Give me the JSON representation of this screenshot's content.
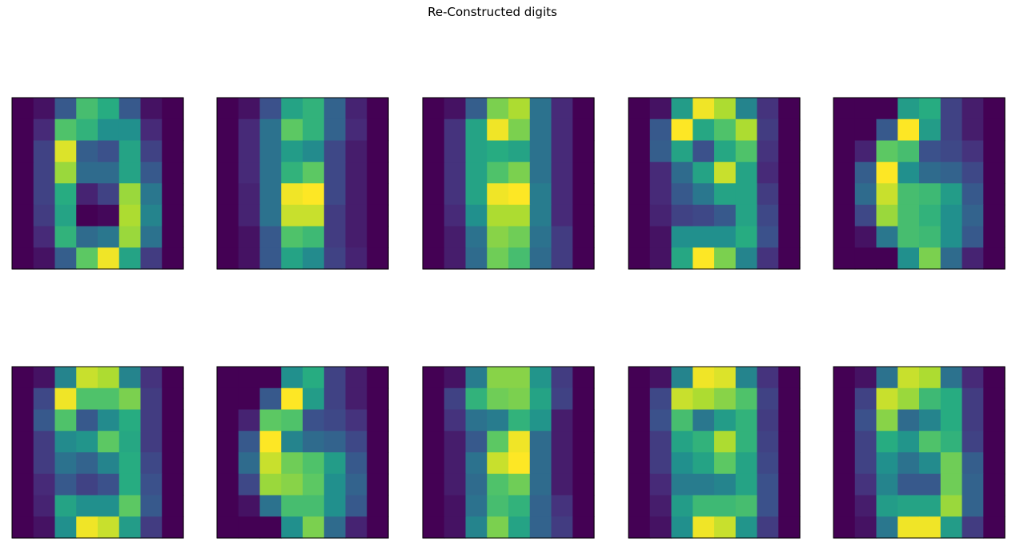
{
  "figure": {
    "title": "Re-Constructed digits"
  },
  "colormap": "viridis",
  "chart_data": [
    {
      "type": "heatmap",
      "title": "",
      "xticks": [],
      "yticks": [],
      "values": [
        [
          0.0,
          0.05,
          0.28,
          0.7,
          0.62,
          0.28,
          0.05,
          0.0
        ],
        [
          0.0,
          0.12,
          0.72,
          0.65,
          0.5,
          0.5,
          0.12,
          0.0
        ],
        [
          0.0,
          0.2,
          0.95,
          0.3,
          0.25,
          0.58,
          0.2,
          0.0
        ],
        [
          0.0,
          0.2,
          0.85,
          0.35,
          0.35,
          0.58,
          0.28,
          0.0
        ],
        [
          0.0,
          0.2,
          0.62,
          0.1,
          0.2,
          0.85,
          0.4,
          0.0
        ],
        [
          0.0,
          0.18,
          0.58,
          0.0,
          0.02,
          0.88,
          0.45,
          0.0
        ],
        [
          0.0,
          0.12,
          0.65,
          0.35,
          0.4,
          0.85,
          0.38,
          0.0
        ],
        [
          0.0,
          0.05,
          0.3,
          0.75,
          0.98,
          0.58,
          0.18,
          0.0
        ]
      ]
    },
    {
      "type": "heatmap",
      "title": "",
      "xticks": [],
      "yticks": [],
      "values": [
        [
          0.0,
          0.05,
          0.25,
          0.58,
          0.65,
          0.32,
          0.1,
          0.0
        ],
        [
          0.0,
          0.12,
          0.38,
          0.75,
          0.65,
          0.32,
          0.12,
          0.0
        ],
        [
          0.0,
          0.12,
          0.38,
          0.55,
          0.48,
          0.22,
          0.08,
          0.0
        ],
        [
          0.0,
          0.12,
          0.38,
          0.65,
          0.75,
          0.22,
          0.08,
          0.0
        ],
        [
          0.0,
          0.1,
          0.38,
          0.98,
          1.0,
          0.22,
          0.08,
          0.0
        ],
        [
          0.0,
          0.1,
          0.38,
          0.92,
          0.92,
          0.18,
          0.08,
          0.0
        ],
        [
          0.0,
          0.05,
          0.28,
          0.72,
          0.68,
          0.18,
          0.08,
          0.0
        ],
        [
          0.0,
          0.05,
          0.28,
          0.58,
          0.48,
          0.2,
          0.1,
          0.0
        ]
      ]
    },
    {
      "type": "heatmap",
      "title": "",
      "xticks": [],
      "yticks": [],
      "values": [
        [
          0.0,
          0.05,
          0.3,
          0.8,
          0.88,
          0.38,
          0.12,
          0.0
        ],
        [
          0.0,
          0.15,
          0.58,
          0.98,
          0.8,
          0.38,
          0.12,
          0.0
        ],
        [
          0.0,
          0.15,
          0.58,
          0.62,
          0.58,
          0.38,
          0.12,
          0.0
        ],
        [
          0.0,
          0.15,
          0.58,
          0.72,
          0.8,
          0.38,
          0.12,
          0.0
        ],
        [
          0.0,
          0.15,
          0.58,
          0.98,
          1.0,
          0.42,
          0.12,
          0.0
        ],
        [
          0.0,
          0.12,
          0.5,
          0.88,
          0.88,
          0.42,
          0.12,
          0.0
        ],
        [
          0.0,
          0.08,
          0.38,
          0.82,
          0.78,
          0.38,
          0.18,
          0.0
        ],
        [
          0.0,
          0.08,
          0.35,
          0.78,
          0.7,
          0.35,
          0.18,
          0.0
        ]
      ]
    },
    {
      "type": "heatmap",
      "title": "",
      "xticks": [],
      "yticks": [],
      "values": [
        [
          0.0,
          0.05,
          0.55,
          0.98,
          0.88,
          0.45,
          0.15,
          0.0
        ],
        [
          0.0,
          0.28,
          1.0,
          0.6,
          0.72,
          0.88,
          0.18,
          0.0
        ],
        [
          0.0,
          0.3,
          0.58,
          0.25,
          0.6,
          0.72,
          0.15,
          0.0
        ],
        [
          0.0,
          0.12,
          0.35,
          0.58,
          0.92,
          0.58,
          0.12,
          0.0
        ],
        [
          0.0,
          0.12,
          0.28,
          0.4,
          0.58,
          0.58,
          0.18,
          0.0
        ],
        [
          0.0,
          0.1,
          0.2,
          0.22,
          0.28,
          0.58,
          0.22,
          0.0
        ],
        [
          0.0,
          0.05,
          0.5,
          0.5,
          0.5,
          0.62,
          0.25,
          0.0
        ],
        [
          0.0,
          0.05,
          0.6,
          1.0,
          0.8,
          0.45,
          0.15,
          0.0
        ]
      ]
    },
    {
      "type": "heatmap",
      "title": "",
      "xticks": [],
      "yticks": [],
      "values": [
        [
          0.0,
          0.0,
          0.0,
          0.55,
          0.62,
          0.2,
          0.08,
          0.0
        ],
        [
          0.0,
          0.0,
          0.28,
          1.0,
          0.55,
          0.2,
          0.08,
          0.0
        ],
        [
          0.0,
          0.1,
          0.75,
          0.7,
          0.25,
          0.22,
          0.15,
          0.0
        ],
        [
          0.0,
          0.3,
          1.0,
          0.5,
          0.35,
          0.32,
          0.22,
          0.0
        ],
        [
          0.0,
          0.35,
          0.92,
          0.7,
          0.68,
          0.55,
          0.28,
          0.0
        ],
        [
          0.0,
          0.22,
          0.85,
          0.7,
          0.65,
          0.5,
          0.32,
          0.0
        ],
        [
          0.0,
          0.05,
          0.4,
          0.7,
          0.68,
          0.5,
          0.28,
          0.0
        ],
        [
          0.0,
          0.0,
          0.0,
          0.5,
          0.8,
          0.35,
          0.1,
          0.0
        ]
      ]
    },
    {
      "type": "heatmap",
      "title": "",
      "xticks": [],
      "yticks": [],
      "values": [
        [
          0.0,
          0.05,
          0.45,
          0.92,
          0.88,
          0.45,
          0.15,
          0.0
        ],
        [
          0.0,
          0.22,
          0.98,
          0.72,
          0.72,
          0.8,
          0.18,
          0.0
        ],
        [
          0.0,
          0.28,
          0.72,
          0.28,
          0.48,
          0.62,
          0.18,
          0.0
        ],
        [
          0.0,
          0.18,
          0.48,
          0.52,
          0.75,
          0.6,
          0.18,
          0.0
        ],
        [
          0.0,
          0.18,
          0.38,
          0.32,
          0.45,
          0.62,
          0.22,
          0.0
        ],
        [
          0.0,
          0.12,
          0.28,
          0.2,
          0.25,
          0.62,
          0.25,
          0.0
        ],
        [
          0.0,
          0.1,
          0.58,
          0.5,
          0.5,
          0.75,
          0.28,
          0.0
        ],
        [
          0.0,
          0.05,
          0.5,
          0.98,
          0.92,
          0.55,
          0.18,
          0.0
        ]
      ]
    },
    {
      "type": "heatmap",
      "title": "",
      "xticks": [],
      "yticks": [],
      "values": [
        [
          0.0,
          0.0,
          0.0,
          0.5,
          0.62,
          0.2,
          0.08,
          0.0
        ],
        [
          0.0,
          0.0,
          0.28,
          1.0,
          0.55,
          0.2,
          0.08,
          0.0
        ],
        [
          0.0,
          0.1,
          0.75,
          0.72,
          0.25,
          0.22,
          0.15,
          0.0
        ],
        [
          0.0,
          0.28,
          1.0,
          0.45,
          0.35,
          0.32,
          0.22,
          0.0
        ],
        [
          0.0,
          0.35,
          0.92,
          0.78,
          0.72,
          0.55,
          0.28,
          0.0
        ],
        [
          0.0,
          0.22,
          0.85,
          0.82,
          0.75,
          0.5,
          0.32,
          0.0
        ],
        [
          0.0,
          0.05,
          0.38,
          0.7,
          0.7,
          0.5,
          0.28,
          0.0
        ],
        [
          0.0,
          0.0,
          0.0,
          0.5,
          0.8,
          0.35,
          0.1,
          0.0
        ]
      ]
    },
    {
      "type": "heatmap",
      "title": "",
      "xticks": [],
      "yticks": [],
      "values": [
        [
          0.0,
          0.05,
          0.42,
          0.82,
          0.82,
          0.52,
          0.18,
          0.0
        ],
        [
          0.0,
          0.2,
          0.65,
          0.78,
          0.8,
          0.58,
          0.2,
          0.0
        ],
        [
          0.0,
          0.15,
          0.38,
          0.42,
          0.65,
          0.52,
          0.08,
          0.0
        ],
        [
          0.0,
          0.08,
          0.28,
          0.75,
          0.98,
          0.35,
          0.08,
          0.0
        ],
        [
          0.0,
          0.08,
          0.38,
          0.92,
          1.0,
          0.35,
          0.08,
          0.0
        ],
        [
          0.0,
          0.08,
          0.35,
          0.72,
          0.78,
          0.35,
          0.08,
          0.0
        ],
        [
          0.0,
          0.05,
          0.38,
          0.7,
          0.65,
          0.32,
          0.15,
          0.0
        ],
        [
          0.0,
          0.05,
          0.45,
          0.8,
          0.58,
          0.32,
          0.18,
          0.0
        ]
      ]
    },
    {
      "type": "heatmap",
      "title": "",
      "xticks": [],
      "yticks": [],
      "values": [
        [
          0.0,
          0.05,
          0.45,
          0.98,
          0.95,
          0.45,
          0.15,
          0.0
        ],
        [
          0.0,
          0.22,
          0.92,
          0.88,
          0.82,
          0.72,
          0.2,
          0.0
        ],
        [
          0.0,
          0.25,
          0.7,
          0.4,
          0.55,
          0.65,
          0.18,
          0.0
        ],
        [
          0.0,
          0.18,
          0.58,
          0.65,
          0.88,
          0.65,
          0.2,
          0.0
        ],
        [
          0.0,
          0.18,
          0.5,
          0.58,
          0.75,
          0.58,
          0.22,
          0.0
        ],
        [
          0.0,
          0.12,
          0.42,
          0.42,
          0.45,
          0.58,
          0.25,
          0.0
        ],
        [
          0.0,
          0.08,
          0.55,
          0.68,
          0.68,
          0.7,
          0.25,
          0.0
        ],
        [
          0.0,
          0.05,
          0.5,
          0.98,
          0.92,
          0.52,
          0.18,
          0.0
        ]
      ]
    },
    {
      "type": "heatmap",
      "title": "",
      "xticks": [],
      "yticks": [],
      "values": [
        [
          0.0,
          0.05,
          0.38,
          0.92,
          0.88,
          0.38,
          0.12,
          0.0
        ],
        [
          0.0,
          0.2,
          0.92,
          0.85,
          0.68,
          0.62,
          0.18,
          0.0
        ],
        [
          0.0,
          0.25,
          0.82,
          0.35,
          0.45,
          0.62,
          0.18,
          0.0
        ],
        [
          0.0,
          0.2,
          0.62,
          0.52,
          0.72,
          0.65,
          0.2,
          0.0
        ],
        [
          0.0,
          0.2,
          0.5,
          0.38,
          0.48,
          0.78,
          0.3,
          0.0
        ],
        [
          0.0,
          0.15,
          0.45,
          0.28,
          0.28,
          0.78,
          0.32,
          0.0
        ],
        [
          0.0,
          0.08,
          0.55,
          0.58,
          0.58,
          0.85,
          0.32,
          0.0
        ],
        [
          0.0,
          0.05,
          0.4,
          0.98,
          0.98,
          0.55,
          0.18,
          0.0
        ]
      ]
    }
  ]
}
